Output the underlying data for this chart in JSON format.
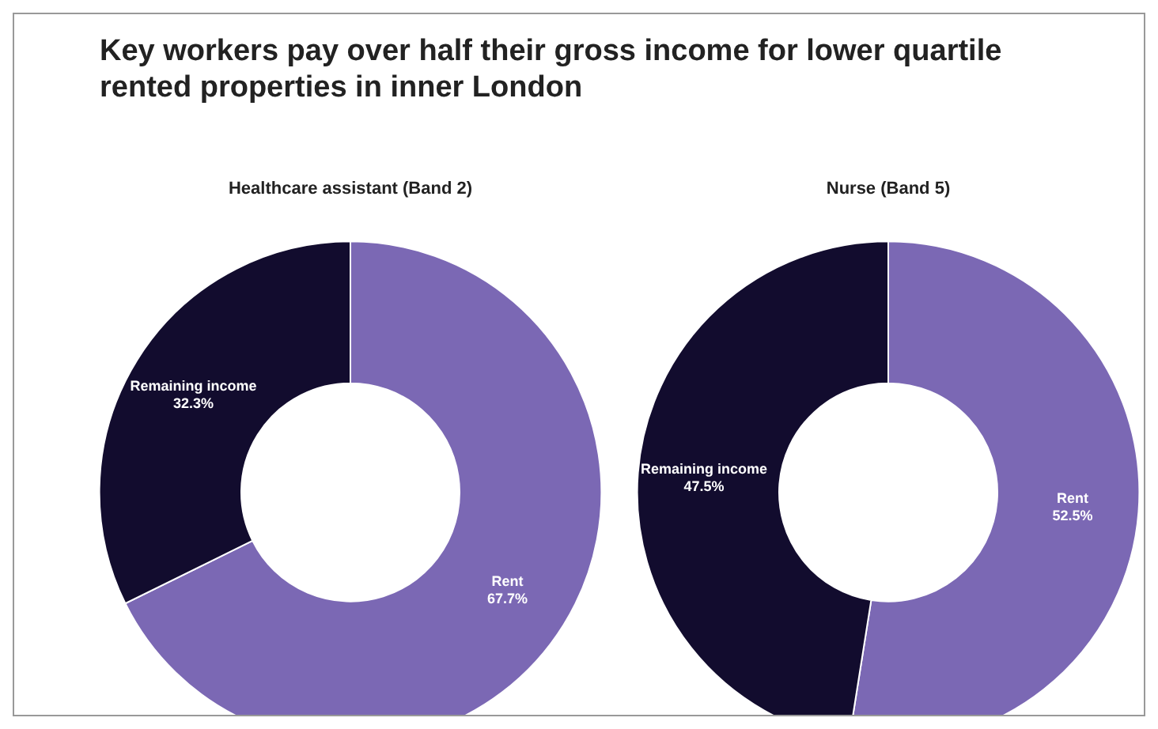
{
  "chart_data": [
    {
      "type": "donut",
      "title": "Key workers pay over half their gross income for lower quartile rented properties in inner London",
      "subtitle": "Healthcare assistant (Band 2)",
      "categories": [
        "Rent",
        "Remaining income"
      ],
      "values": [
        67.7,
        32.3
      ],
      "value_labels": [
        "67.7%",
        "32.3%"
      ],
      "colors": [
        "#7b68b4",
        "#120c2e"
      ],
      "legend": false
    },
    {
      "type": "donut",
      "subtitle": "Nurse (Band 5)",
      "categories": [
        "Rent",
        "Remaining income"
      ],
      "values": [
        52.5,
        47.5
      ],
      "value_labels": [
        "52.5%",
        "47.5%"
      ],
      "colors": [
        "#7b68b4",
        "#120c2e"
      ],
      "legend": false
    }
  ]
}
